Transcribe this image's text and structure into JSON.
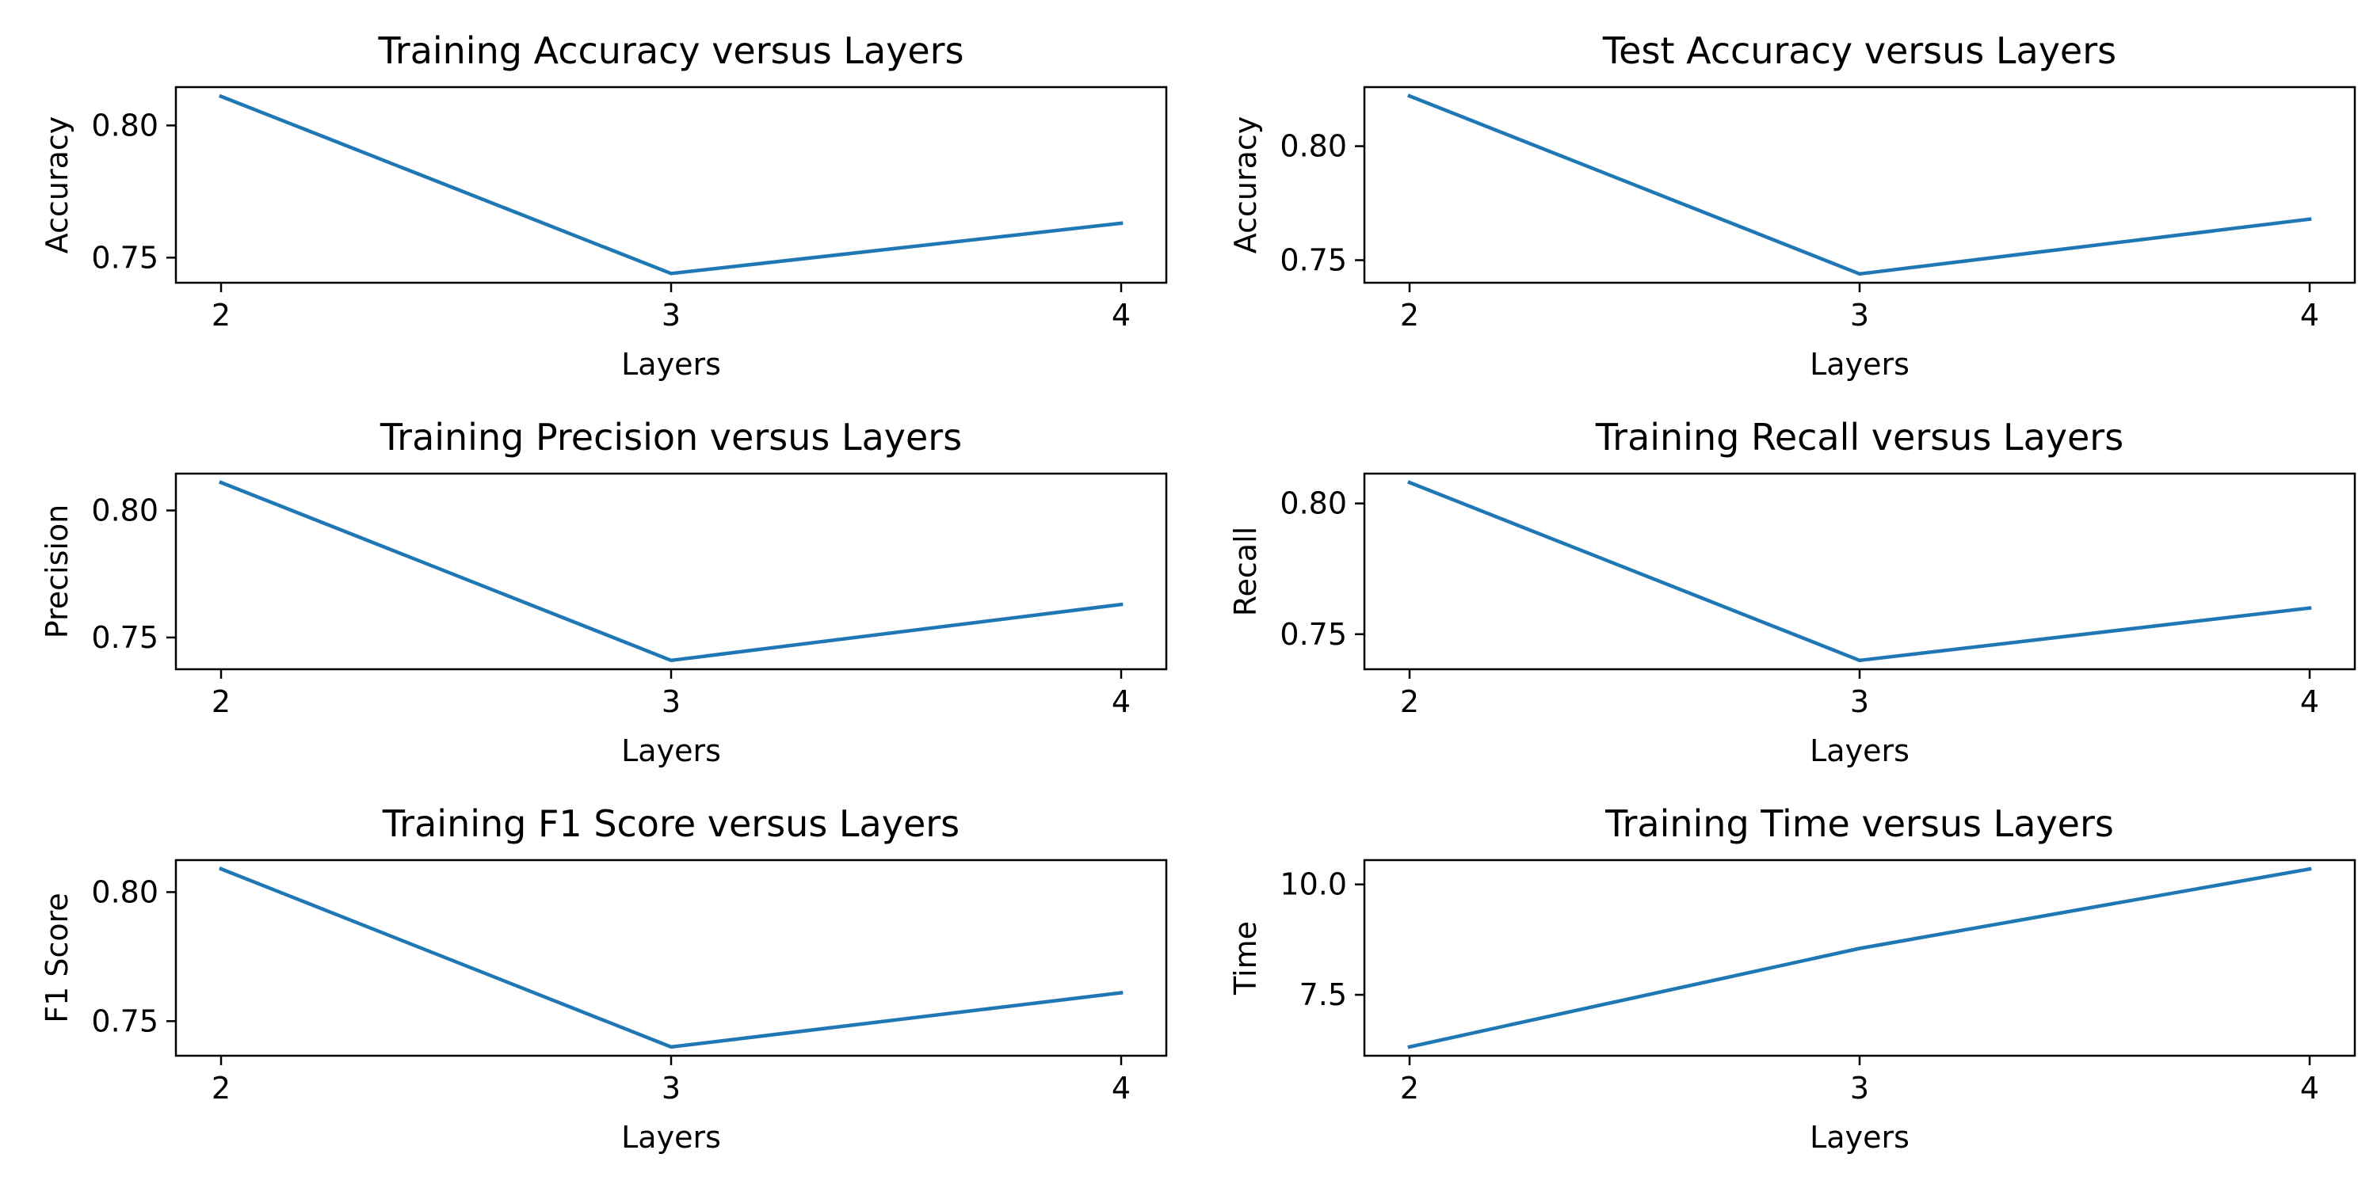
{
  "chart_data": [
    {
      "type": "line",
      "title": "Training Accuracy versus Layers",
      "xlabel": "Layers",
      "ylabel": "Accuracy",
      "x": [
        2,
        3,
        4
      ],
      "series": [
        {
          "values": [
            0.811,
            0.744,
            0.763
          ]
        }
      ],
      "xticks": [
        "2",
        "3",
        "4"
      ],
      "yticks": [
        0.75,
        0.8
      ],
      "ytick_labels": [
        "0.75",
        "0.80"
      ],
      "ylim": [
        0.7405,
        0.8145
      ],
      "color": "#1f77b4",
      "grid": false,
      "legend": "none"
    },
    {
      "type": "line",
      "title": "Test Accuracy versus Layers",
      "xlabel": "Layers",
      "ylabel": "Accuracy",
      "x": [
        2,
        3,
        4
      ],
      "series": [
        {
          "values": [
            0.822,
            0.744,
            0.768
          ]
        }
      ],
      "xticks": [
        "2",
        "3",
        "4"
      ],
      "yticks": [
        0.75,
        0.8
      ],
      "ytick_labels": [
        "0.75",
        "0.80"
      ],
      "ylim": [
        0.7401,
        0.8259
      ],
      "color": "#1f77b4",
      "grid": false,
      "legend": "none"
    },
    {
      "type": "line",
      "title": "Training Precision versus Layers",
      "xlabel": "Layers",
      "ylabel": "Precision",
      "x": [
        2,
        3,
        4
      ],
      "series": [
        {
          "values": [
            0.811,
            0.741,
            0.763
          ]
        }
      ],
      "xticks": [
        "2",
        "3",
        "4"
      ],
      "yticks": [
        0.75,
        0.8
      ],
      "ytick_labels": [
        "0.75",
        "0.80"
      ],
      "ylim": [
        0.7375,
        0.8145
      ],
      "color": "#1f77b4",
      "grid": false,
      "legend": "none"
    },
    {
      "type": "line",
      "title": "Training Recall versus Layers",
      "xlabel": "Layers",
      "ylabel": "Recall",
      "x": [
        2,
        3,
        4
      ],
      "series": [
        {
          "values": [
            0.808,
            0.74,
            0.76
          ]
        }
      ],
      "xticks": [
        "2",
        "3",
        "4"
      ],
      "yticks": [
        0.75,
        0.8
      ],
      "ytick_labels": [
        "0.75",
        "0.80"
      ],
      "ylim": [
        0.7366,
        0.8114
      ],
      "color": "#1f77b4",
      "grid": false,
      "legend": "none"
    },
    {
      "type": "line",
      "title": "Training F1 Score versus Layers",
      "xlabel": "Layers",
      "ylabel": "F1 Score",
      "x": [
        2,
        3,
        4
      ],
      "series": [
        {
          "values": [
            0.809,
            0.74,
            0.761
          ]
        }
      ],
      "xticks": [
        "2",
        "3",
        "4"
      ],
      "yticks": [
        0.75,
        0.8
      ],
      "ytick_labels": [
        "0.75",
        "0.80"
      ],
      "ylim": [
        0.7366,
        0.8124
      ],
      "color": "#1f77b4",
      "grid": false,
      "legend": "none"
    },
    {
      "type": "line",
      "title": "Training Time versus Layers",
      "xlabel": "Layers",
      "ylabel": "Time",
      "x": [
        2,
        3,
        4
      ],
      "series": [
        {
          "values": [
            6.32,
            8.55,
            10.35
          ]
        }
      ],
      "xticks": [
        "2",
        "3",
        "4"
      ],
      "yticks": [
        7.5,
        10.0
      ],
      "ytick_labels": [
        "7.5",
        "10.0"
      ],
      "ylim": [
        6.12,
        10.55
      ],
      "color": "#1f77b4",
      "grid": false,
      "legend": "none"
    }
  ]
}
